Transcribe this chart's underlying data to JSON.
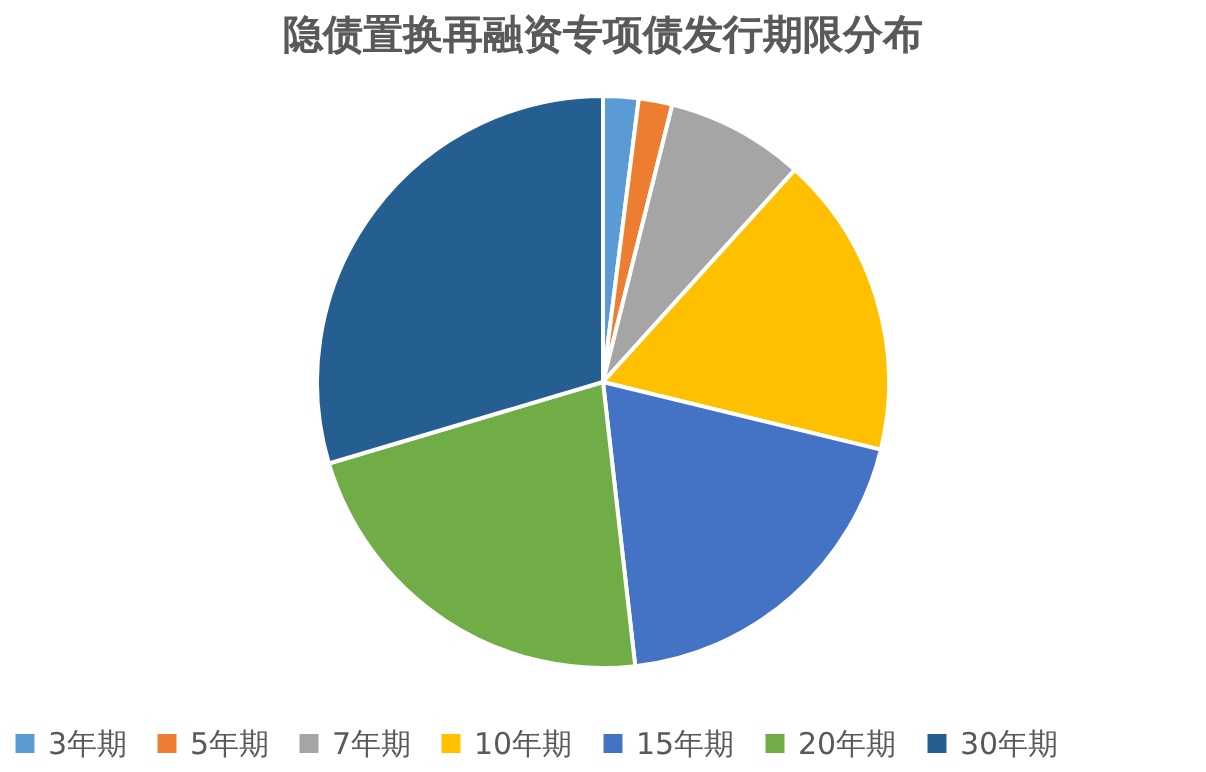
{
  "chart_data": {
    "type": "pie",
    "title": "隐债置换再融资专项债发行期限分布",
    "categories": [
      "3年期",
      "5年期",
      "7年期",
      "10年期",
      "15年期",
      "20年期",
      "30年期"
    ],
    "values": [
      2,
      1.9,
      7.8,
      17.1,
      19.4,
      22.2,
      29.6
    ],
    "colors": [
      "#5b9bd5",
      "#ed7d31",
      "#a5a5a5",
      "#ffc000",
      "#4472c4",
      "#70ad47",
      "#255e91"
    ],
    "legend": "bottom"
  }
}
